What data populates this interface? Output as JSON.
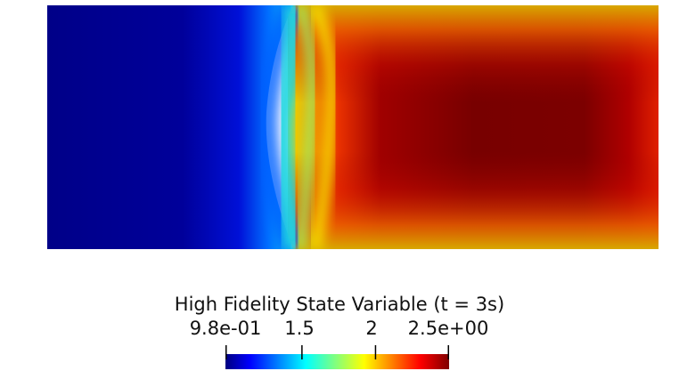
{
  "legend": {
    "title": "High Fidelity State Variable (t = 3s)",
    "ticks": [
      {
        "label": "9.8e-01",
        "value": 0.98
      },
      {
        "label": "1.5",
        "value": 1.5
      },
      {
        "label": "2",
        "value": 2.0
      },
      {
        "label": "2.5e+00",
        "value": 2.5
      }
    ],
    "range": [
      0.98,
      2.5
    ],
    "colormap": [
      "#00007f",
      "#0000ff",
      "#00ffff",
      "#ffff00",
      "#ff0000",
      "#7f0000"
    ]
  },
  "field": {
    "description_colors": {
      "low": "#00008b",
      "front": "#20d0e0",
      "high": "#7a0000",
      "edge": "#d4a800"
    }
  }
}
